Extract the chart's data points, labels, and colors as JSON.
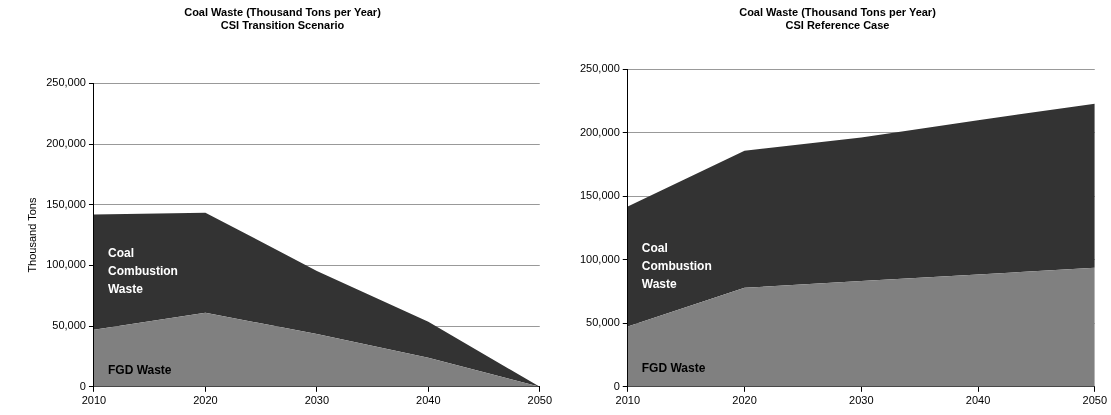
{
  "chart_data": [
    {
      "type": "area",
      "title": "Coal Waste (Thousand Tons per Year)",
      "subtitle": "CSI Transition Scenario",
      "ylabel": "Thousand Tons",
      "x": [
        2010,
        2020,
        2030,
        2040,
        2050
      ],
      "stacked": true,
      "series": [
        {
          "name": "FGD Waste",
          "color": "#808080",
          "values": [
            47000,
            61000,
            43500,
            24000,
            0
          ]
        },
        {
          "name": "Coal Combustion Waste",
          "color": "#333333",
          "values": [
            95000,
            82500,
            52000,
            29700,
            0
          ]
        }
      ],
      "xlim": [
        2010,
        2050
      ],
      "xticks": [
        {
          "value": 2010,
          "label": "2010"
        },
        {
          "value": 2020,
          "label": "2020"
        },
        {
          "value": 2030,
          "label": "2030"
        },
        {
          "value": 2040,
          "label": "2040"
        },
        {
          "value": 2050,
          "label": "2050"
        }
      ],
      "ylim": [
        0,
        250000
      ],
      "yticks": [
        0,
        {
          "value": 50000,
          "label": "50,000"
        },
        {
          "value": 100000,
          "label": "100,000"
        },
        {
          "value": 150000,
          "label": "150,000"
        },
        {
          "value": 200000,
          "label": "200,000"
        },
        {
          "value": 250000,
          "label": "250,000"
        }
      ],
      "grid": "y",
      "legend": false
    },
    {
      "type": "area",
      "title": "Coal Waste (Thousand Tons per Year)",
      "subtitle": "CSI Reference Case",
      "x": [
        2010,
        2020,
        2030,
        2040,
        2050
      ],
      "stacked": true,
      "series": [
        {
          "name": "FGD Waste",
          "color": "#808080",
          "values": [
            47400,
            78000,
            83400,
            88500,
            93700
          ]
        },
        {
          "name": "Coal Combustion Waste",
          "color": "#333333",
          "values": [
            94600,
            108000,
            113000,
            121500,
            129300
          ]
        }
      ],
      "xlim": [
        2010,
        2050
      ],
      "xticks": [
        {
          "value": 2010,
          "label": "2010"
        },
        {
          "value": 2020,
          "label": "2020"
        },
        {
          "value": 2030,
          "label": "2030"
        },
        {
          "value": 2040,
          "label": "2040"
        },
        {
          "value": 2050,
          "label": "2050"
        }
      ],
      "ylim": [
        0,
        250000
      ],
      "yticks": [
        0,
        {
          "value": 50000,
          "label": "50,000"
        },
        {
          "value": 100000,
          "label": "100,000"
        },
        {
          "value": 150000,
          "label": "150,000"
        },
        {
          "value": 200000,
          "label": "200,000"
        },
        {
          "value": 250000,
          "label": "250,000"
        }
      ],
      "grid": "y",
      "legend": false
    }
  ]
}
